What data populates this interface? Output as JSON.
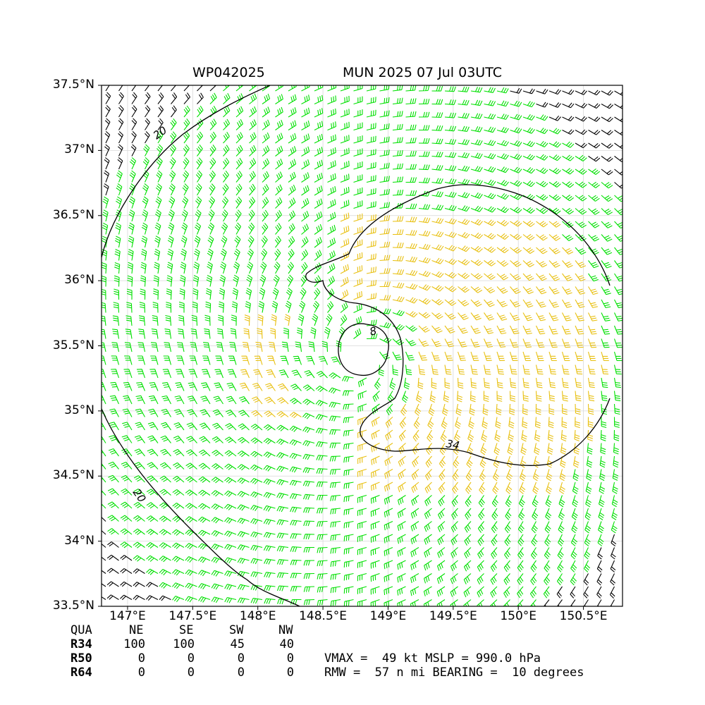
{
  "header": {
    "storm_id": "WP042025",
    "storm_time": "MUN 2025 07 Jul 03UTC"
  },
  "axes": {
    "lat_labels": [
      "37.5°N",
      "37°N",
      "36.5°N",
      "36°N",
      "35.5°N",
      "35°N",
      "34.5°N",
      "34°N",
      "33.5°N"
    ],
    "lat_values": [
      37.5,
      37.0,
      36.5,
      36.0,
      35.5,
      35.0,
      34.5,
      34.0,
      33.5
    ],
    "lon_labels": [
      "147°E",
      "147.5°E",
      "148°E",
      "148.5°E",
      "149°E",
      "149.5°E",
      "150°E",
      "150.5°E"
    ],
    "lon_values": [
      147.0,
      147.5,
      148.0,
      148.5,
      149.0,
      149.5,
      150.0,
      150.5
    ],
    "lon_range": [
      146.8,
      150.8
    ],
    "lat_range": [
      33.5,
      37.5
    ]
  },
  "storm": {
    "center_lon": 148.8,
    "center_lat": 35.4,
    "vmax_kt": 49,
    "mslp_hpa": 990.0,
    "rmw_nmi": 57,
    "bearing_deg": 10
  },
  "contours": {
    "labels": [
      "20",
      "20",
      "34",
      "8"
    ]
  },
  "colors": {
    "below_34kt": "#000000",
    "kt_34_to_50": "#00e000",
    "kt_50_plus": "#e8c010",
    "contour": "#000000"
  },
  "wind_radii_table": {
    "header": [
      "QUA",
      "NE",
      "SE",
      "SW",
      "NW"
    ],
    "rows": [
      {
        "label": "R34",
        "values": [
          "100",
          "100",
          "45",
          "40"
        ]
      },
      {
        "label": "R50",
        "values": [
          "0",
          "0",
          "0",
          "0"
        ]
      },
      {
        "label": "R64",
        "values": [
          "0",
          "0",
          "0",
          "0"
        ]
      }
    ]
  },
  "info_lines": {
    "line1": "VMAX =  49 kt MSLP = 990.0 hPa",
    "line2": "RMW =  57 n mi BEARING =  10 degrees"
  }
}
